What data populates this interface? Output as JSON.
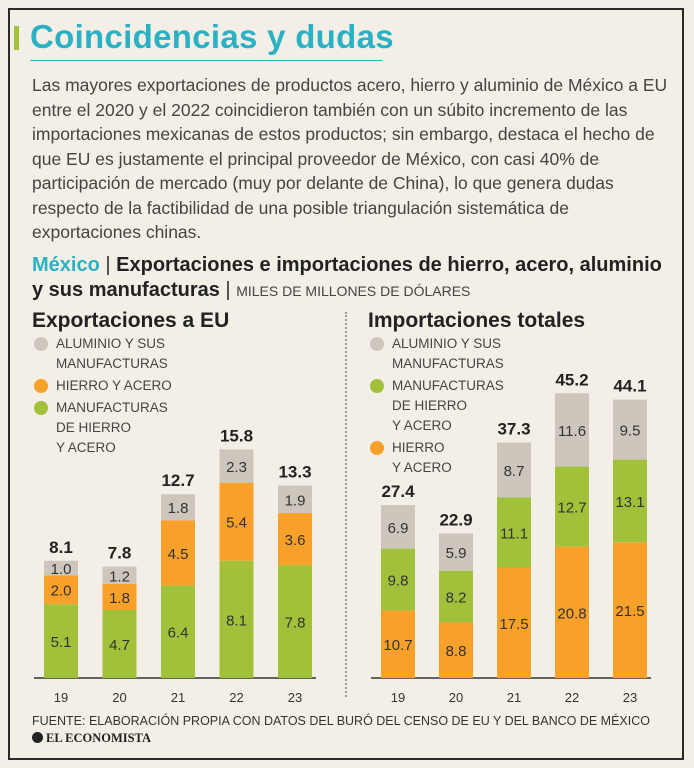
{
  "title": "Coincidencias y dudas",
  "intro": "Las mayores exportaciones de productos acero, hierro y aluminio de México a EU entre el 2020 y el 2022 coincidieron también con un súbito incremento de las importaciones mexicanas de estos productos; sin embargo, destaca el hecho de que EU es justamente el principal proveedor de México, con casi 40% de participación de mercado (muy por delante de China), lo que genera dudas respecto de la factibilidad de una posible triangulación sistemática de exportaciones chinas.",
  "subhead": {
    "country": "México",
    "separator": "|",
    "title": "Exportaciones e importaciones de hierro, acero, aluminio y sus manufacturas",
    "units_separator": "|",
    "units": "MILES DE MILLONES DE DÓLARES"
  },
  "colors": {
    "aluminio": "#cdc6bc",
    "hierro": "#f7a12a",
    "manufacturas": "#a2c13a",
    "axis": "#333333"
  },
  "chart_data": [
    {
      "type": "bar",
      "stacked": true,
      "title": "Exportaciones a EU",
      "categories": [
        "19",
        "20",
        "21",
        "22",
        "23"
      ],
      "ylim": [
        0,
        17
      ],
      "legend_order": [
        "aluminio",
        "hierro",
        "manufacturas"
      ],
      "legend_labels": {
        "aluminio": "ALUMINIO Y SUS\nMANUFACTURAS",
        "hierro": "HIERRO Y ACERO",
        "manufacturas": "MANUFACTURAS\nDE HIERRO\nY ACERO"
      },
      "stack_order": [
        "manufacturas",
        "hierro",
        "aluminio"
      ],
      "series": [
        {
          "key": "manufacturas",
          "name": "Manufacturas de hierro y acero",
          "values": [
            5.1,
            4.7,
            6.4,
            8.1,
            7.8
          ]
        },
        {
          "key": "hierro",
          "name": "Hierro y acero",
          "values": [
            2.0,
            1.8,
            4.5,
            5.4,
            3.6
          ]
        },
        {
          "key": "aluminio",
          "name": "Aluminio y sus manufacturas",
          "values": [
            1.0,
            1.2,
            1.8,
            2.3,
            1.9
          ]
        }
      ],
      "totals": [
        "8.1",
        "7.8",
        "12.7",
        "15.8",
        "13.3"
      ],
      "value_labels": {
        "manufacturas": [
          "5.1",
          "4.7",
          "6.4",
          "8.1",
          "7.8"
        ],
        "hierro": [
          "2.0",
          "1.8",
          "4.5",
          "5.4",
          "3.6"
        ],
        "aluminio": [
          "1.0",
          "1.2",
          "1.8",
          "2.3",
          "1.9"
        ]
      }
    },
    {
      "type": "bar",
      "stacked": true,
      "title": "Importaciones totales",
      "categories": [
        "19",
        "20",
        "21",
        "22",
        "23"
      ],
      "ylim": [
        0,
        48
      ],
      "legend_order": [
        "aluminio",
        "manufacturas",
        "hierro"
      ],
      "legend_labels": {
        "aluminio": "ALUMINIO Y SUS\nMANUFACTURAS",
        "manufacturas": "MANUFACTURAS\nDE HIERRO\nY ACERO",
        "hierro": "HIERRO\nY ACERO"
      },
      "stack_order": [
        "hierro",
        "manufacturas",
        "aluminio"
      ],
      "series": [
        {
          "key": "hierro",
          "name": "Hierro y acero",
          "values": [
            10.7,
            8.8,
            17.5,
            20.8,
            21.5
          ]
        },
        {
          "key": "manufacturas",
          "name": "Manufacturas de hierro y acero",
          "values": [
            9.8,
            8.2,
            11.1,
            12.7,
            13.1
          ]
        },
        {
          "key": "aluminio",
          "name": "Aluminio y sus manufacturas",
          "values": [
            6.9,
            5.9,
            8.7,
            11.6,
            9.5
          ]
        }
      ],
      "totals": [
        "27.4",
        "22.9",
        "37.3",
        "45.2",
        "44.1"
      ],
      "value_labels": {
        "hierro": [
          "10.7",
          "8.8",
          "17.5",
          "20.8",
          "21.5"
        ],
        "manufacturas": [
          "9.8",
          "8.2",
          "11.1",
          "12.7",
          "13.1"
        ],
        "aluminio": [
          "6.9",
          "5.9",
          "8.7",
          "11.6",
          "9.5"
        ]
      }
    }
  ],
  "source": "FUENTE: ELABORACIÓN PROPIA CON DATOS DEL BURÓ DEL CENSO DE EU Y DEL BANCO DE MÉXICO",
  "brand": "EL ECONOMISTA"
}
